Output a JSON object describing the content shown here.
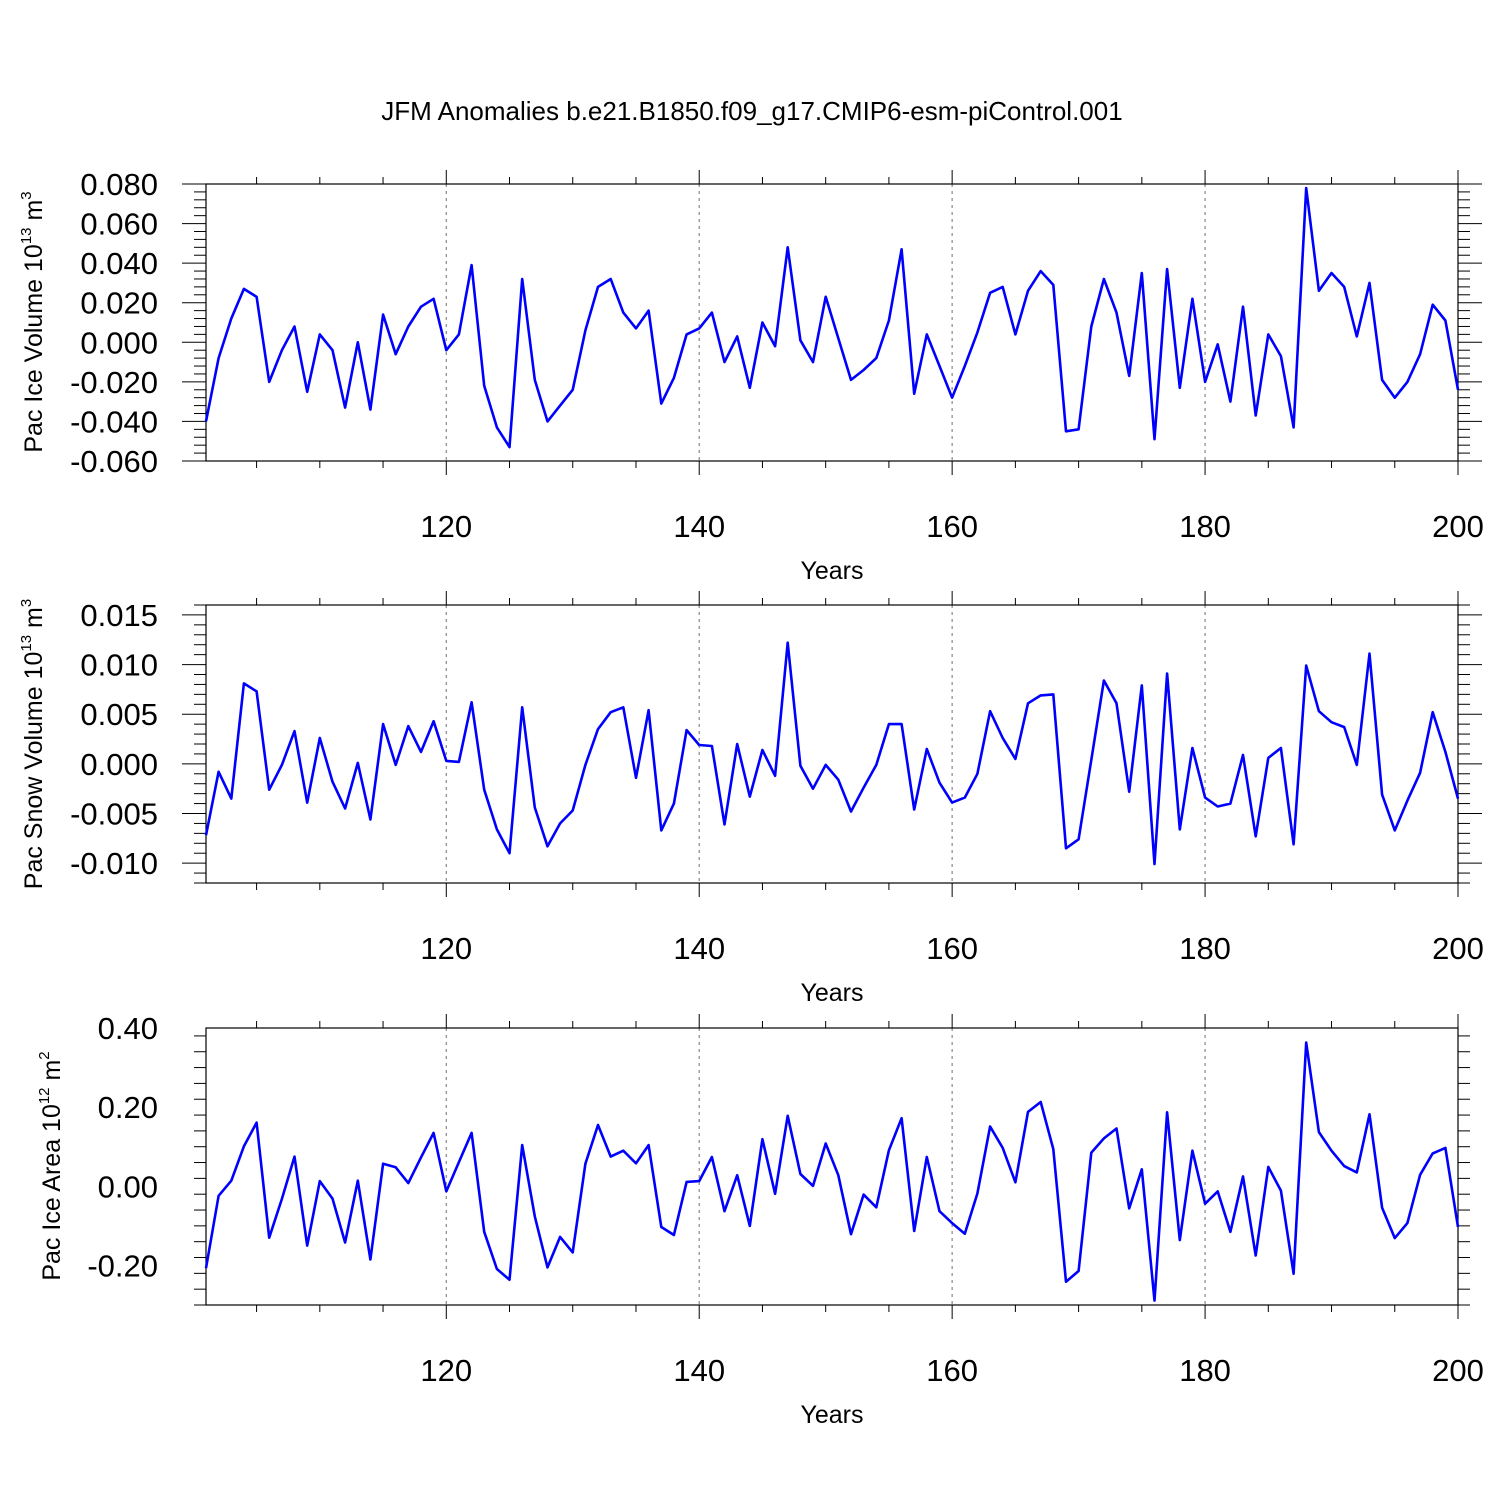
{
  "title": "JFM Anomalies b.e21.B1850.f09_g17.CMIP6-esm-piControl.001",
  "colors": {
    "series": "#0000ff",
    "grid": "#888888",
    "axis": "#000000"
  },
  "chart_data": [
    {
      "type": "line",
      "ylabel": {
        "text": "Pac Ice Volume 10",
        "exponent": "13",
        "unit": "m",
        "unit_exponent": "3"
      },
      "xlabel": "Years",
      "xlim": [
        101,
        200
      ],
      "ylim": [
        -0.06,
        0.08
      ],
      "y_ticks": [
        -0.06,
        -0.04,
        -0.02,
        0.0,
        0.02,
        0.04,
        0.06,
        0.08
      ],
      "y_tick_labels": [
        "-0.060",
        "-0.040",
        "-0.020",
        "0.000",
        "0.020",
        "0.040",
        "0.060",
        "0.080"
      ],
      "x_ticks": [
        120,
        140,
        160,
        180,
        200
      ],
      "x_tick_labels": [
        "120",
        "140",
        "160",
        "180",
        "200"
      ],
      "grid": "x-dashed",
      "x_start": 101,
      "values": [
        -0.04,
        -0.008,
        0.012,
        0.027,
        0.023,
        -0.02,
        -0.004,
        0.008,
        -0.025,
        0.004,
        -0.004,
        -0.033,
        0.0,
        -0.034,
        0.014,
        -0.006,
        0.008,
        0.018,
        0.022,
        -0.004,
        0.004,
        0.039,
        -0.022,
        -0.043,
        -0.053,
        0.032,
        -0.019,
        -0.04,
        -0.032,
        -0.024,
        0.006,
        0.028,
        0.032,
        0.015,
        0.007,
        0.016,
        -0.031,
        -0.018,
        0.004,
        0.007,
        0.015,
        -0.01,
        0.003,
        -0.023,
        0.01,
        -0.002,
        0.048,
        0.001,
        -0.01,
        0.023,
        0.002,
        -0.019,
        -0.014,
        -0.008,
        0.011,
        0.047,
        -0.026,
        0.004,
        -0.012,
        -0.028,
        -0.012,
        0.005,
        0.025,
        0.028,
        0.004,
        0.026,
        0.036,
        0.029,
        -0.045,
        -0.044,
        0.008,
        0.032,
        0.015,
        -0.017,
        0.035,
        -0.049,
        0.037,
        -0.023,
        0.022,
        -0.02,
        -0.001,
        -0.03,
        0.018,
        -0.037,
        0.004,
        -0.007,
        -0.043,
        0.078,
        0.026,
        0.035,
        0.028,
        0.003,
        0.03,
        -0.019,
        -0.028,
        -0.02,
        -0.006,
        0.019,
        0.011,
        -0.024
      ]
    },
    {
      "type": "line",
      "ylabel": {
        "text": "Pac Snow Volume 10",
        "exponent": "13",
        "unit": "m",
        "unit_exponent": "3"
      },
      "xlabel": "Years",
      "xlim": [
        101,
        200
      ],
      "ylim": [
        -0.012,
        0.016
      ],
      "y_ticks": [
        -0.01,
        -0.005,
        0.0,
        0.005,
        0.01,
        0.015
      ],
      "y_tick_labels": [
        "-0.010",
        "-0.005",
        "0.000",
        "0.005",
        "0.010",
        "0.015"
      ],
      "x_ticks": [
        120,
        140,
        160,
        180,
        200
      ],
      "x_tick_labels": [
        "120",
        "140",
        "160",
        "180",
        "200"
      ],
      "grid": "x-dashed",
      "x_start": 101,
      "values": [
        -0.0072,
        -0.0008,
        -0.0035,
        0.0081,
        0.0073,
        -0.0026,
        -0.0001,
        0.0033,
        -0.0039,
        0.0026,
        -0.0018,
        -0.0045,
        0.0001,
        -0.0056,
        0.004,
        -0.0001,
        0.0038,
        0.0012,
        0.0043,
        0.0003,
        0.0002,
        0.0062,
        -0.0026,
        -0.0066,
        -0.009,
        0.0057,
        -0.0044,
        -0.0083,
        -0.006,
        -0.0047,
        -0.0001,
        0.0035,
        0.0052,
        0.0057,
        -0.0014,
        0.0054,
        -0.0067,
        -0.004,
        0.0034,
        0.0019,
        0.0018,
        -0.0061,
        0.002,
        -0.0033,
        0.0014,
        -0.0012,
        0.0122,
        -0.0002,
        -0.0025,
        -0.0001,
        -0.0016,
        -0.0048,
        -0.0024,
        -0.0001,
        0.004,
        0.004,
        -0.0046,
        0.0015,
        -0.0019,
        -0.0039,
        -0.0034,
        -0.001,
        0.0053,
        0.0026,
        0.0005,
        0.0061,
        0.0069,
        0.007,
        -0.0085,
        -0.0076,
        0.0004,
        0.0084,
        0.0061,
        -0.0028,
        0.0079,
        -0.0101,
        0.0091,
        -0.0066,
        0.0016,
        -0.0034,
        -0.0043,
        -0.004,
        0.0009,
        -0.0073,
        0.0006,
        0.0016,
        -0.0081,
        0.0099,
        0.0053,
        0.0042,
        0.0037,
        -0.0001,
        0.0111,
        -0.0031,
        -0.0067,
        -0.0037,
        -0.0009,
        0.0052,
        0.0012,
        -0.0035
      ]
    },
    {
      "type": "line",
      "ylabel": {
        "text": "Pac Ice Area 10",
        "exponent": "12",
        "unit": "m",
        "unit_exponent": "2"
      },
      "xlabel": "Years",
      "xlim": [
        101,
        200
      ],
      "ylim": [
        -0.3,
        0.4
      ],
      "y_ticks": [
        -0.2,
        0.0,
        0.2,
        0.4
      ],
      "y_tick_labels": [
        "-0.20",
        "0.00",
        "0.20",
        "0.40"
      ],
      "x_ticks": [
        120,
        140,
        160,
        180,
        200
      ],
      "x_tick_labels": [
        "120",
        "140",
        "160",
        "180",
        "200"
      ],
      "grid": "x-dashed",
      "x_start": 101,
      "values": [
        -0.207,
        -0.024,
        0.014,
        0.101,
        0.161,
        -0.13,
        -0.032,
        0.075,
        -0.15,
        0.013,
        -0.031,
        -0.142,
        0.014,
        -0.185,
        0.057,
        0.048,
        0.008,
        0.073,
        0.135,
        -0.013,
        0.061,
        0.135,
        -0.115,
        -0.209,
        -0.236,
        0.104,
        -0.076,
        -0.205,
        -0.128,
        -0.167,
        0.057,
        0.155,
        0.075,
        0.09,
        0.058,
        0.104,
        -0.103,
        -0.123,
        0.011,
        0.013,
        0.074,
        -0.063,
        0.028,
        -0.1,
        0.119,
        -0.019,
        0.178,
        0.031,
        0.001,
        0.108,
        0.028,
        -0.121,
        -0.021,
        -0.053,
        0.091,
        0.172,
        -0.113,
        0.074,
        -0.063,
        -0.093,
        -0.12,
        -0.018,
        0.151,
        0.097,
        0.01,
        0.188,
        0.213,
        0.094,
        -0.241,
        -0.214,
        0.085,
        0.121,
        0.146,
        -0.056,
        0.043,
        -0.289,
        0.187,
        -0.136,
        0.09,
        -0.044,
        -0.013,
        -0.115,
        0.025,
        -0.175,
        0.049,
        -0.011,
        -0.221,
        0.363,
        0.137,
        0.09,
        0.051,
        0.035,
        0.182,
        -0.054,
        -0.131,
        -0.093,
        0.029,
        0.083,
        0.097,
        -0.103
      ]
    }
  ]
}
